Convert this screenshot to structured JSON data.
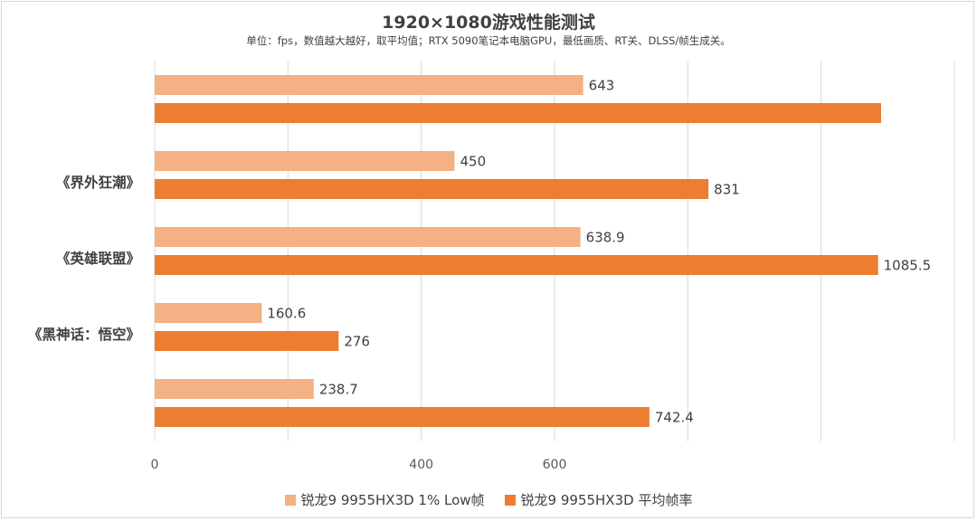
{
  "title": "1920×1080游戏性能测试",
  "subtitle": "单位：fps，数值越大越好，取平均值；RTX 5090笔记本电脑GPU，最低画质、RT关、DLSS/帧生成关。",
  "chart_data": {
    "type": "bar",
    "orientation": "horizontal",
    "categories": [
      "",
      "《界外狂潮》",
      "《英雄联盟》",
      "《黑神话：悟空》",
      ""
    ],
    "series": [
      {
        "name": "锐龙9 9955HX3D 1% Low帧",
        "color": "#f4b183",
        "values": [
          643,
          450,
          638.9,
          160.6,
          238.7
        ],
        "labels": [
          "643",
          "450",
          "638.9",
          "160.6",
          "238.7"
        ]
      },
      {
        "name": "锐龙9 9955HX3D 平均帧率",
        "color": "#ed7d31",
        "values": [
          1090,
          831,
          1085.5,
          276,
          742.4
        ],
        "labels": [
          "",
          "831",
          "1085.5",
          "276",
          "742.4"
        ]
      }
    ],
    "xlim": [
      0,
      1200
    ],
    "xticks": [
      0,
      200,
      400,
      600,
      800,
      1000,
      1200
    ],
    "xtick_labels": [
      "0",
      "",
      "400",
      "600",
      "",
      "",
      ""
    ],
    "grid": true,
    "legend": "bottom"
  }
}
